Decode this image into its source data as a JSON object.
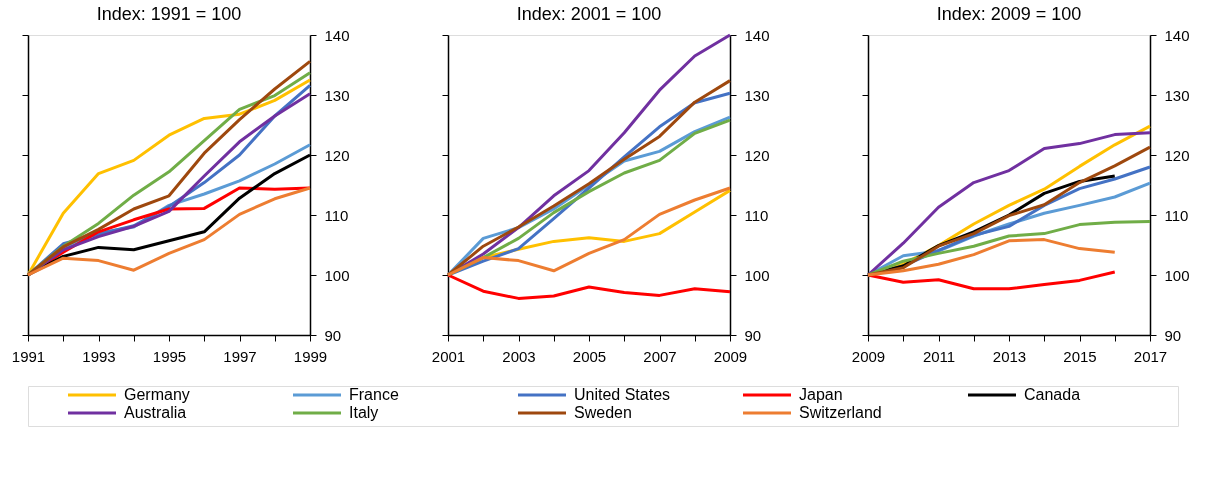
{
  "chart_data": [
    {
      "type": "line",
      "title": "Index: 1991 = 100",
      "legend": "bottom",
      "grid": false,
      "x": [
        1991,
        1992,
        1993,
        1994,
        1995,
        1996,
        1997,
        1998,
        1999
      ],
      "xlim": [
        1991,
        1999
      ],
      "xticks": [
        1991,
        {
          "value": 1992,
          "label": null
        },
        1993,
        {
          "value": 1994,
          "label": null
        },
        1995,
        {
          "value": 1996,
          "label": null
        },
        1997,
        {
          "value": 1998,
          "label": null
        },
        1999
      ],
      "ylim": [
        90,
        140
      ],
      "yticks": [
        90,
        100,
        110,
        120,
        130,
        140
      ],
      "series": [
        {
          "name": "Germany",
          "color": "#ffc000",
          "values": [
            100,
            110.3,
            116.9,
            119.1,
            123.3,
            126.1,
            126.8,
            129.1,
            132.5
          ]
        },
        {
          "name": "France",
          "color": "#5b9bd5",
          "values": [
            100,
            104.5,
            107,
            108,
            111.6,
            113.5,
            115.7,
            118.5,
            121.7
          ]
        },
        {
          "name": "United States",
          "color": "#4472c4",
          "values": [
            100,
            105.2,
            106.8,
            108.2,
            111.4,
            115.4,
            120,
            126.5,
            131.6
          ]
        },
        {
          "name": "Japan",
          "color": "#ff0000",
          "values": [
            100,
            103.8,
            107.2,
            109.2,
            111,
            111.1,
            114.5,
            114.3,
            114.5
          ]
        },
        {
          "name": "Canada",
          "color": "#000000",
          "values": [
            100,
            103.1,
            104.6,
            104.2,
            105.7,
            107.2,
            112.8,
            116.9,
            120
          ]
        },
        {
          "name": "Australia",
          "color": "#7030a0",
          "values": [
            100,
            104.2,
            106.4,
            108.1,
            110.6,
            116.5,
            122.2,
            126.5,
            130.2
          ]
        },
        {
          "name": "Italy",
          "color": "#70ad47",
          "values": [
            100,
            104.8,
            108.6,
            113.3,
            117.2,
            122.4,
            127.6,
            129.9,
            133.7
          ]
        },
        {
          "name": "Sweden",
          "color": "#9e480e",
          "values": [
            100,
            104.7,
            107.6,
            111,
            113.2,
            120.3,
            125.9,
            131,
            135.6
          ]
        },
        {
          "name": "Switzerland",
          "color": "#ed7d31",
          "values": [
            100,
            102.8,
            102.4,
            100.8,
            103.6,
            105.9,
            110.1,
            112.7,
            114.5
          ]
        }
      ]
    },
    {
      "type": "line",
      "title": "Index: 2001 = 100",
      "legend": "bottom",
      "grid": false,
      "x": [
        2001,
        2002,
        2003,
        2004,
        2005,
        2006,
        2007,
        2008,
        2009
      ],
      "xlim": [
        2001,
        2009
      ],
      "xticks": [
        2001,
        {
          "value": 2002,
          "label": null
        },
        2003,
        {
          "value": 2004,
          "label": null
        },
        2005,
        {
          "value": 2006,
          "label": null
        },
        2007,
        {
          "value": 2008,
          "label": null
        },
        2009
      ],
      "ylim": [
        90,
        140
      ],
      "yticks": [
        90,
        100,
        110,
        120,
        130,
        140
      ],
      "series": [
        {
          "name": "Germany",
          "color": "#ffc000",
          "values": [
            100,
            102.9,
            104.3,
            105.6,
            106.2,
            105.6,
            106.9,
            110.5,
            114.1
          ]
        },
        {
          "name": "France",
          "color": "#5b9bd5",
          "values": [
            100,
            106.1,
            107.9,
            111,
            115,
            119,
            120.6,
            123.9,
            126.3
          ]
        },
        {
          "name": "United States",
          "color": "#4472c4",
          "values": [
            100,
            102.3,
            104.4,
            109.4,
            114.5,
            119.7,
            124.7,
            128.7,
            130.3
          ]
        },
        {
          "name": "Japan",
          "color": "#ff0000",
          "values": [
            100,
            97.3,
            96.1,
            96.5,
            98,
            97.1,
            96.6,
            97.7,
            97.2
          ]
        },
        {
          "name": "Australia",
          "color": "#7030a0",
          "values": [
            100,
            103.5,
            107.9,
            113.2,
            117.4,
            123.7,
            130.8,
            136.5,
            140
          ]
        },
        {
          "name": "Italy",
          "color": "#70ad47",
          "values": [
            100,
            102.9,
            106.1,
            110.4,
            113.9,
            117,
            119.1,
            123.6,
            125.8
          ]
        },
        {
          "name": "Sweden",
          "color": "#9e480e",
          "values": [
            100,
            104.8,
            108,
            111.5,
            115.2,
            119.3,
            123.1,
            128.8,
            132.4
          ]
        },
        {
          "name": "Switzerland",
          "color": "#ed7d31",
          "values": [
            100,
            102.9,
            102.4,
            100.7,
            103.6,
            105.9,
            110.1,
            112.5,
            114.5
          ]
        }
      ]
    },
    {
      "type": "line",
      "title": "Index: 2009 = 100",
      "legend": "bottom",
      "grid": false,
      "x": [
        2009,
        2010,
        2011,
        2012,
        2013,
        2014,
        2015,
        2016,
        2017
      ],
      "xlim": [
        2009,
        2017
      ],
      "xticks": [
        2009,
        {
          "value": 2010,
          "label": null
        },
        2011,
        {
          "value": 2012,
          "label": null
        },
        2013,
        {
          "value": 2014,
          "label": null
        },
        2015,
        {
          "value": 2016,
          "label": null
        },
        2017
      ],
      "ylim": [
        90,
        140
      ],
      "yticks": [
        90,
        100,
        110,
        120,
        130,
        140
      ],
      "series": [
        {
          "name": "Germany",
          "color": "#ffc000",
          "values": [
            100,
            101.8,
            104.9,
            108.5,
            111.6,
            114.3,
            118.1,
            121.7,
            124.8
          ]
        },
        {
          "name": "France",
          "color": "#5b9bd5",
          "values": [
            100,
            103.2,
            104,
            106.5,
            108.5,
            110.3,
            111.6,
            113,
            115.3
          ]
        },
        {
          "name": "United States",
          "color": "#4472c4",
          "values": [
            100,
            101.5,
            104.1,
            106.6,
            108.1,
            111.6,
            114.4,
            116,
            118
          ]
        },
        {
          "name": "Japan",
          "color": "#ff0000",
          "values": [
            100,
            98.8,
            99.2,
            97.7,
            97.7,
            98.4,
            99.1,
            100.5,
            null
          ]
        },
        {
          "name": "Canada",
          "color": "#000000",
          "values": [
            100,
            101.5,
            104.9,
            107.2,
            110,
            113.6,
            115.6,
            116.5,
            null
          ]
        },
        {
          "name": "Australia",
          "color": "#7030a0",
          "values": [
            100,
            105.3,
            111.3,
            115.4,
            117.4,
            121.1,
            121.9,
            123.4,
            123.7
          ]
        },
        {
          "name": "Italy",
          "color": "#70ad47",
          "values": [
            100,
            102.3,
            103.6,
            104.8,
            106.5,
            106.9,
            108.4,
            108.8,
            108.9
          ]
        },
        {
          "name": "Sweden",
          "color": "#9e480e",
          "values": [
            100,
            101.2,
            104.8,
            106.9,
            109.9,
            111.7,
            115.4,
            118.2,
            121.3
          ]
        },
        {
          "name": "Switzerland",
          "color": "#ed7d31",
          "values": [
            100,
            100.7,
            101.8,
            103.4,
            105.7,
            105.9,
            104.4,
            103.8,
            null
          ]
        }
      ]
    }
  ]
}
